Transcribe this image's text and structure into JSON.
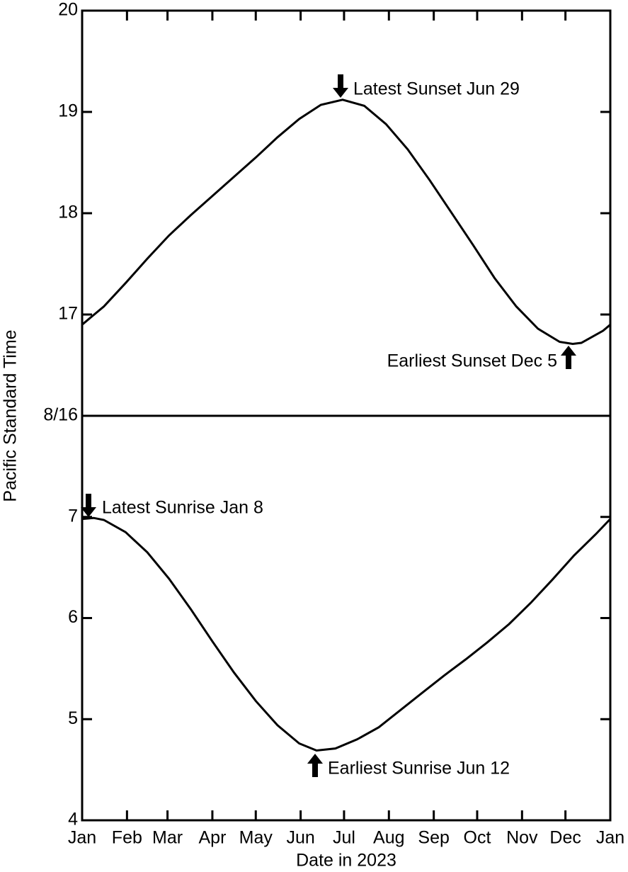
{
  "chart_data": [
    {
      "type": "line",
      "y_label": "Pacific Standard Time",
      "x": [
        0,
        15,
        30,
        45,
        60,
        75,
        90,
        105,
        120,
        135,
        150,
        165,
        180,
        195,
        210,
        225,
        240,
        255,
        270,
        285,
        300,
        315,
        330,
        339,
        345,
        360,
        365
      ],
      "values": [
        16.9,
        17.08,
        17.31,
        17.55,
        17.78,
        17.98,
        18.17,
        18.36,
        18.55,
        18.75,
        18.93,
        19.07,
        19.12,
        19.06,
        18.88,
        18.63,
        18.33,
        18.01,
        17.69,
        17.36,
        17.08,
        16.86,
        16.73,
        16.71,
        16.72,
        16.84,
        16.9
      ],
      "color": "#000000",
      "xlim": [
        0,
        365
      ],
      "ylim": [
        16,
        20
      ],
      "yticks": [
        {
          "value": 16,
          "label": "8/16"
        },
        17,
        18,
        19,
        20
      ],
      "annotations": [
        "Latest Sunset Jun 29",
        "Earliest Sunset Dec 5"
      ]
    },
    {
      "type": "line",
      "x_label": "Date in 2023",
      "x": [
        0,
        8,
        15,
        30,
        45,
        60,
        75,
        90,
        105,
        120,
        135,
        150,
        162,
        175,
        190,
        205,
        220,
        235,
        250,
        265,
        280,
        295,
        310,
        325,
        340,
        355,
        365
      ],
      "values": [
        6.98,
        6.99,
        6.97,
        6.85,
        6.65,
        6.39,
        6.09,
        5.77,
        5.46,
        5.18,
        4.94,
        4.76,
        4.69,
        4.71,
        4.8,
        4.92,
        5.09,
        5.26,
        5.43,
        5.59,
        5.76,
        5.94,
        6.15,
        6.38,
        6.62,
        6.83,
        6.98
      ],
      "color": "#000000",
      "xlim": [
        0,
        365
      ],
      "ylim": [
        4,
        8
      ],
      "xticks": [
        {
          "value": 0,
          "label": "Jan"
        },
        {
          "value": 31,
          "label": "Feb"
        },
        {
          "value": 59,
          "label": "Mar"
        },
        {
          "value": 90,
          "label": "Apr"
        },
        {
          "value": 120,
          "label": "May"
        },
        {
          "value": 151,
          "label": "Jun"
        },
        {
          "value": 181,
          "label": "Jul"
        },
        {
          "value": 212,
          "label": "Aug"
        },
        {
          "value": 243,
          "label": "Sep"
        },
        {
          "value": 273,
          "label": "Oct"
        },
        {
          "value": 304,
          "label": "Nov"
        },
        {
          "value": 334,
          "label": "Dec"
        },
        {
          "value": 365,
          "label": "Jan"
        }
      ],
      "yticks": [
        4,
        5,
        6,
        7
      ],
      "annotations": [
        "Latest Sunrise Jan 8",
        "Earliest Sunrise Jun 12"
      ]
    }
  ]
}
